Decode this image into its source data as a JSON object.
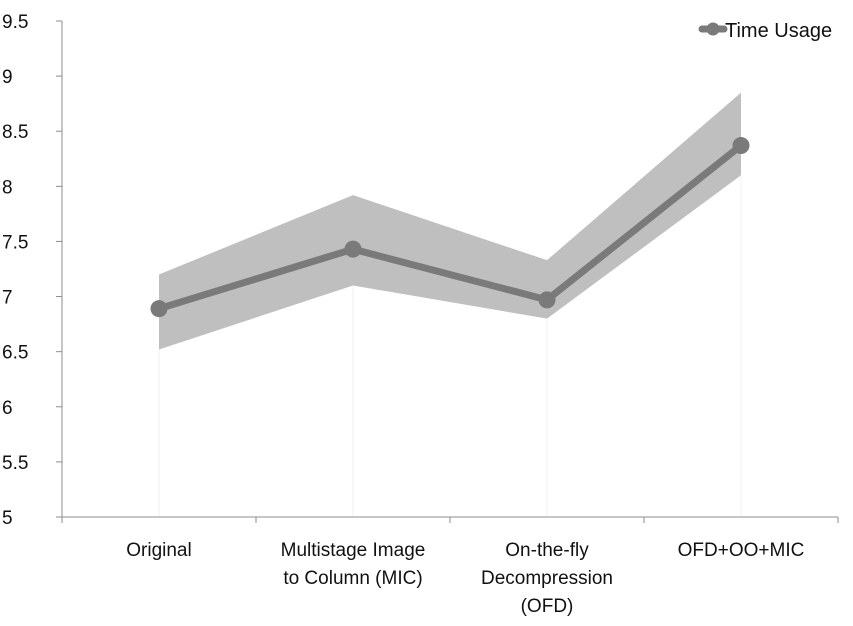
{
  "chart_data": {
    "type": "line",
    "title": "",
    "xlabel": "",
    "ylabel": "",
    "categories": [
      [
        "Original"
      ],
      [
        "Multistage Image",
        "to Column (MIC)"
      ],
      [
        "On-the-fly",
        "Decompression",
        "(OFD)"
      ],
      [
        "OFD+OO+MIC"
      ]
    ],
    "series": [
      {
        "name": "Time Usage",
        "values": [
          6.89,
          7.43,
          6.97,
          8.37
        ],
        "band_low": [
          6.52,
          7.1,
          6.8,
          8.1
        ],
        "band_high": [
          7.2,
          7.92,
          7.33,
          8.85
        ]
      }
    ],
    "ylim": [
      5,
      9.5
    ],
    "yticks": [
      "5",
      "5.5",
      "6",
      "6.5",
      "7",
      "7.5",
      "8",
      "8.5",
      "9",
      "9.5"
    ],
    "grid": false,
    "legend_position": "top-right",
    "colors": {
      "line": "#7a7a7a",
      "band": "#bfbfbf",
      "axis": "#8c8c8c"
    }
  }
}
